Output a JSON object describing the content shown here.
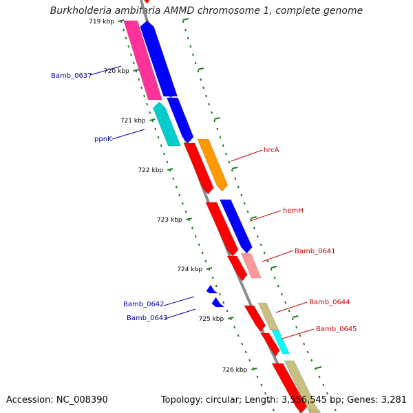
{
  "title": "Burkholderia ambifaria AMMD chromosome 1, complete genome",
  "footer": {
    "accession": "Accession: NC_008390",
    "stats": "Topology: circular; Length: 3,556,545 bp; Genes: 3,281"
  },
  "colors": {
    "backbone": "#8a8a8a",
    "tick": "#1a7a1a",
    "forward_label": "#cc0000",
    "reverse_label": "#0000aa"
  },
  "ticks": [
    {
      "label": "719 kbp"
    },
    {
      "label": "720 kbp"
    },
    {
      "label": "721 kbp"
    },
    {
      "label": "722 kbp"
    },
    {
      "label": "723 kbp"
    },
    {
      "label": "724 kbp"
    },
    {
      "label": "725 kbp"
    },
    {
      "label": "726 kbp"
    }
  ],
  "genes": [
    {
      "name": "",
      "color": "#ff0000"
    },
    {
      "name": "Bamb_0637",
      "color": "#ff3399"
    },
    {
      "name": "",
      "color": "#0000ff"
    },
    {
      "name": "ppnK",
      "color": "#00cccc"
    },
    {
      "name": "",
      "color": "#0000ff"
    },
    {
      "name": "hrcA",
      "color": "#ff9900"
    },
    {
      "name": "",
      "color": "#ff0000"
    },
    {
      "name": "hemH",
      "color": "#0000ff"
    },
    {
      "name": "",
      "color": "#ff0000"
    },
    {
      "name": "Bamb_0641",
      "color": "#ff9999"
    },
    {
      "name": "",
      "color": "#ff0000"
    },
    {
      "name": "Bamb_0642",
      "color": "#0000ff"
    },
    {
      "name": "Bamb_0643",
      "color": "#0000ff"
    },
    {
      "name": "Bamb_0644",
      "color": "#c8c080"
    },
    {
      "name": "",
      "color": "#ff0000"
    },
    {
      "name": "Bamb_0645",
      "color": "#00ffff"
    },
    {
      "name": "",
      "color": "#ff0000"
    },
    {
      "name": "",
      "color": "#c8c080"
    },
    {
      "name": "",
      "color": "#ff0000"
    },
    {
      "name": "",
      "color": "#c8c080"
    }
  ]
}
